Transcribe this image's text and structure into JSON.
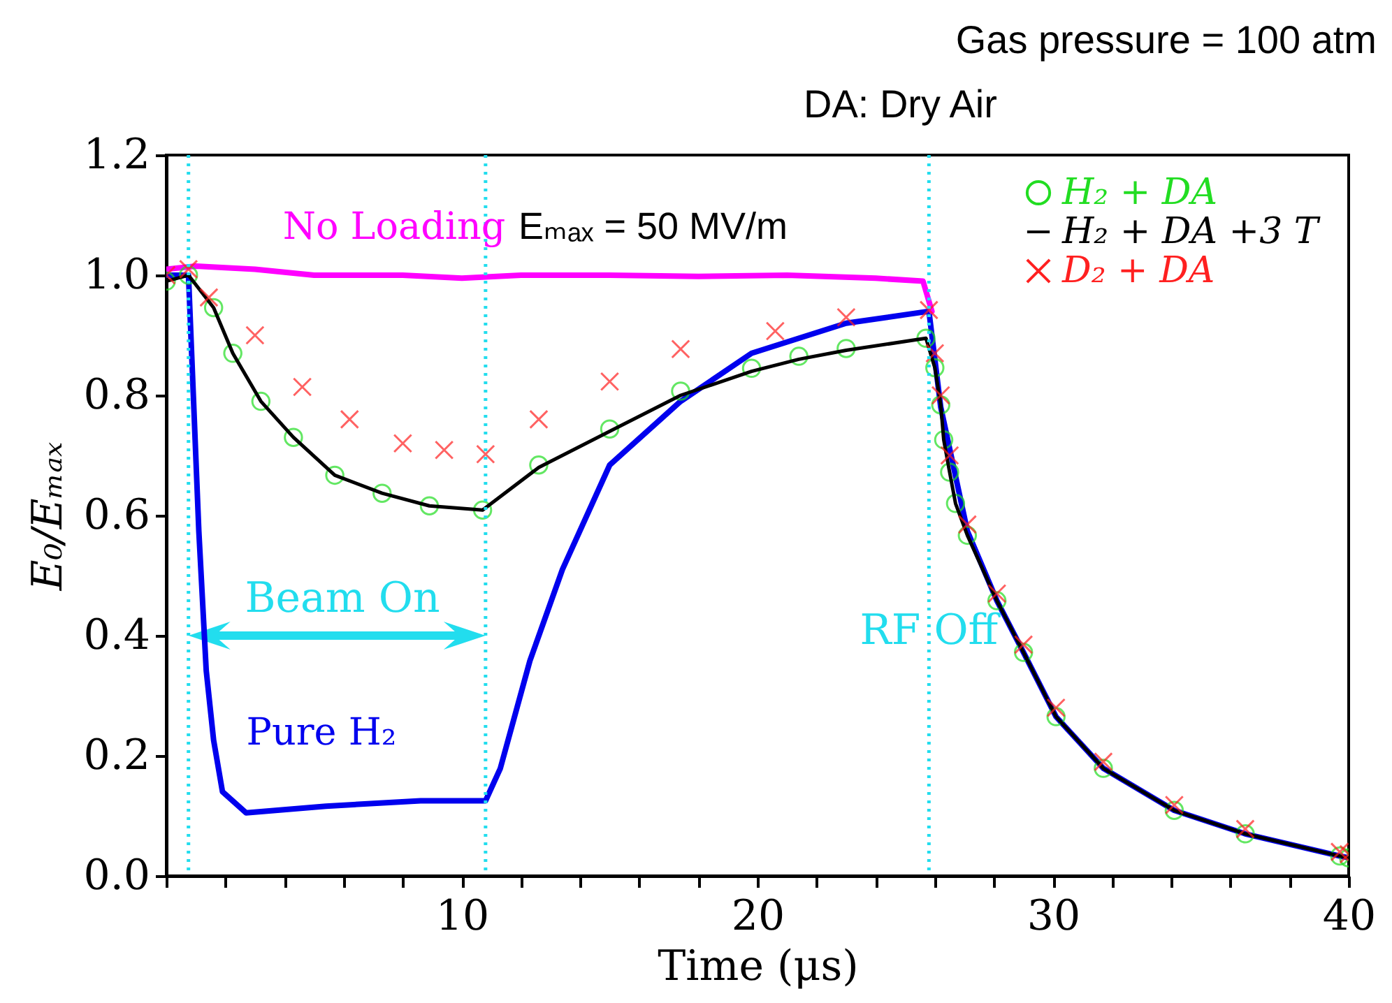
{
  "chart_data": {
    "type": "line",
    "xlabel": "Time (μs)",
    "ylabel": "E₀/Eₘₐₓ",
    "xlim": [
      0,
      40
    ],
    "ylim": [
      0,
      1.2
    ],
    "xticks": [
      {
        "value": 0,
        "label": null
      },
      {
        "value": 2,
        "label": null
      },
      {
        "value": 4,
        "label": null
      },
      {
        "value": 6,
        "label": null
      },
      {
        "value": 8,
        "label": null
      },
      {
        "value": 10,
        "label": "10"
      },
      {
        "value": 12,
        "label": null
      },
      {
        "value": 14,
        "label": null
      },
      {
        "value": 16,
        "label": null
      },
      {
        "value": 18,
        "label": null
      },
      {
        "value": 20,
        "label": "20"
      },
      {
        "value": 22,
        "label": null
      },
      {
        "value": 24,
        "label": null
      },
      {
        "value": 26,
        "label": null
      },
      {
        "value": 28,
        "label": null
      },
      {
        "value": 30,
        "label": "30"
      },
      {
        "value": 32,
        "label": null
      },
      {
        "value": 34,
        "label": null
      },
      {
        "value": 36,
        "label": null
      },
      {
        "value": 38,
        "label": null
      },
      {
        "value": 40,
        "label": "40"
      }
    ],
    "yticks": [
      {
        "value": 0,
        "label": "0.0"
      },
      {
        "value": 0.2,
        "label": "0.2"
      },
      {
        "value": 0.4,
        "label": "0.4"
      },
      {
        "value": 0.6,
        "label": "0.6"
      },
      {
        "value": 0.8,
        "label": "0.8"
      },
      {
        "value": 1,
        "label": "1.0"
      },
      {
        "value": 1.2,
        "label": "1.2"
      }
    ],
    "legend": "top right",
    "series": [
      {
        "color": "#0000ee",
        "marker": "none",
        "x": [
          0,
          0.75,
          1.1,
          1.35,
          1.6,
          1.9,
          2.7,
          5.4,
          8.6,
          10.8,
          11.3,
          12.3,
          13.4,
          15,
          17.4,
          19.8,
          23,
          25.8,
          26.2,
          27.1,
          28.1,
          29,
          30.1,
          31.7,
          34.1,
          36.5,
          39.7,
          40
        ],
        "values": [
          1.0,
          1.0,
          0.574,
          0.342,
          0.226,
          0.14,
          0.105,
          0.116,
          0.125,
          0.125,
          0.179,
          0.358,
          0.51,
          0.684,
          0.79,
          0.87,
          0.92,
          0.94,
          0.78,
          0.574,
          0.458,
          0.372,
          0.265,
          0.179,
          0.109,
          0.07,
          0.033,
          0.03
        ]
      },
      {
        "color": "#ff00ff",
        "marker": "none",
        "x": [
          0,
          1,
          3,
          5,
          8,
          10,
          12,
          15,
          18,
          21,
          24,
          25.6,
          25.9
        ],
        "values": [
          1.01,
          1.015,
          1.01,
          1.0,
          1.0,
          0.995,
          1.0,
          1.0,
          0.998,
          1.0,
          0.995,
          0.99,
          0.94
        ]
      },
      {
        "name": "H₂ + DA",
        "type": "scatter",
        "color": "#22dd22",
        "marker": "circle",
        "x": [
          0,
          0.75,
          1.6,
          2.25,
          3.2,
          4.3,
          5.7,
          7.3,
          8.9,
          10.7,
          12.6,
          15,
          17.4,
          19.8,
          21.4,
          23,
          25.7,
          26,
          26.2,
          26.3,
          26.5,
          26.7,
          27.1,
          28.1,
          29,
          30.1,
          31.7,
          34.1,
          36.5,
          39.7,
          40
        ],
        "values": [
          0.99,
          1.0,
          0.946,
          0.87,
          0.79,
          0.73,
          0.667,
          0.637,
          0.616,
          0.609,
          0.684,
          0.744,
          0.807,
          0.845,
          0.865,
          0.878,
          0.895,
          0.846,
          0.784,
          0.726,
          0.672,
          0.62,
          0.567,
          0.458,
          0.372,
          0.265,
          0.179,
          0.109,
          0.07,
          0.033,
          0.03
        ]
      },
      {
        "name": "H₂ + DA +3 T",
        "color": "#000000",
        "marker": "none",
        "x": [
          0,
          0.75,
          1.6,
          2.25,
          3.2,
          4.3,
          5.7,
          7.3,
          8.9,
          10.7,
          12.6,
          15,
          17.4,
          19.8,
          21.4,
          23,
          25.7,
          26,
          26.2,
          26.3,
          26.5,
          26.7,
          27.1,
          28.1,
          29,
          30.1,
          31.7,
          34.1,
          36.5,
          39.7,
          40
        ],
        "values": [
          0.99,
          1.0,
          0.946,
          0.87,
          0.79,
          0.73,
          0.667,
          0.637,
          0.616,
          0.609,
          0.68,
          0.74,
          0.8,
          0.84,
          0.86,
          0.875,
          0.895,
          0.846,
          0.784,
          0.726,
          0.672,
          0.62,
          0.567,
          0.458,
          0.372,
          0.265,
          0.179,
          0.109,
          0.07,
          0.033,
          0.03
        ]
      },
      {
        "name": "D₂ + DA",
        "type": "scatter",
        "color": "#ff2020",
        "marker": "cross",
        "x": [
          0,
          0.75,
          1.44,
          3,
          4.6,
          6.2,
          8,
          9.4,
          10.8,
          12.6,
          15,
          17.4,
          20.6,
          23,
          25.8,
          26,
          26.2,
          26.5,
          27.1,
          28.1,
          29,
          30.1,
          31.7,
          34.1,
          36.5,
          39.7,
          40
        ],
        "values": [
          1.0,
          1.01,
          0.963,
          0.9,
          0.814,
          0.76,
          0.72,
          0.709,
          0.702,
          0.76,
          0.823,
          0.877,
          0.907,
          0.93,
          0.942,
          0.87,
          0.8,
          0.7,
          0.585,
          0.47,
          0.385,
          0.28,
          0.19,
          0.118,
          0.078,
          0.04,
          0.036
        ]
      }
    ],
    "ref_lines": [
      {
        "axis": "x",
        "value": 0.75,
        "label": null,
        "color": "#22ddee",
        "line_style": "dotted"
      },
      {
        "axis": "x",
        "value": 10.8,
        "label": null,
        "color": "#22ddee",
        "line_style": "dotted"
      },
      {
        "axis": "x",
        "value": 25.8,
        "label": "RF Off",
        "color": "#22ddee",
        "line_style": "dotted"
      }
    ],
    "annotations": [
      "Gas pressure = 100 atm",
      "DA: Dry Air",
      "Eₘₐₓ = 50 MV/m",
      "Beam On",
      "No Loading",
      "Pure H₂"
    ]
  }
}
